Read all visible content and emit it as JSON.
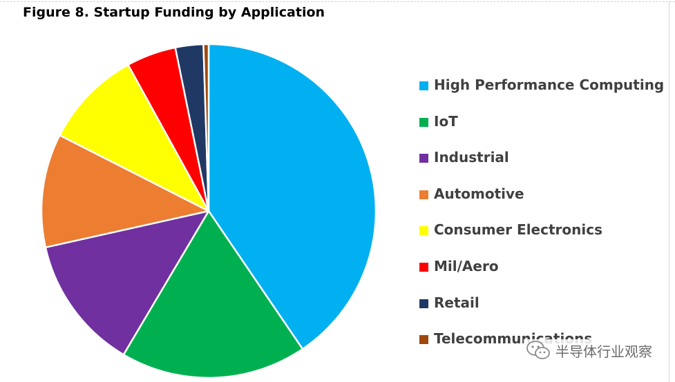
{
  "title": "Figure 8. Startup Funding by Application",
  "watermark": {
    "text": "半导体行业观察",
    "icon": "wechat-icon"
  },
  "chart_data": {
    "type": "pie",
    "title": "Figure 8. Startup Funding by Application",
    "legend_position": "right",
    "slices": [
      {
        "label": "High Performance Computing",
        "value": 40.5,
        "color": "#00B0F0"
      },
      {
        "label": "IoT",
        "value": 18.0,
        "color": "#00B050"
      },
      {
        "label": "Industrial",
        "value": 13.0,
        "color": "#7030A0"
      },
      {
        "label": "Automotive",
        "value": 11.0,
        "color": "#ED7D31"
      },
      {
        "label": "Consumer Electronics",
        "value": 9.5,
        "color": "#FFFF00"
      },
      {
        "label": "Mil/Aero",
        "value": 4.8,
        "color": "#FF0000"
      },
      {
        "label": "Retail",
        "value": 2.7,
        "color": "#203864"
      },
      {
        "label": "Telecommunications",
        "value": 0.5,
        "color": "#9E480E"
      }
    ]
  }
}
